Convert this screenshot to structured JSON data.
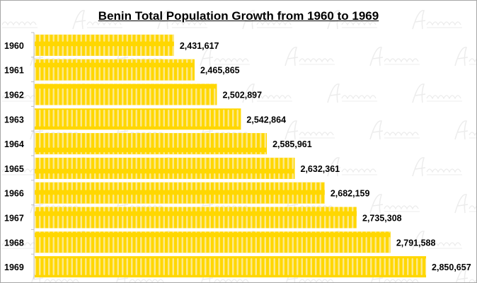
{
  "chart_data": {
    "type": "bar",
    "orientation": "horizontal",
    "title": "Benin Total Population Growth from 1960 to 1969",
    "categories": [
      "1960",
      "1961",
      "1962",
      "1963",
      "1964",
      "1965",
      "1966",
      "1967",
      "1968",
      "1969"
    ],
    "values": [
      2431617,
      2465865,
      2502897,
      2542864,
      2585961,
      2632361,
      2682159,
      2735308,
      2791588,
      2850657
    ],
    "data_labels": [
      "2,431,617",
      "2,465,865",
      "2,502,897",
      "2,542,864",
      "2,585,961",
      "2,632,361",
      "2,682,159",
      "2,735,308",
      "2,791,588",
      "2,850,657"
    ],
    "xlim": [
      2200000,
      2920000
    ],
    "grid": false,
    "legend": "none",
    "bar_color": "#FFD700",
    "bar_pattern_color": "#FCE98A",
    "watermark": "Afroluent"
  }
}
